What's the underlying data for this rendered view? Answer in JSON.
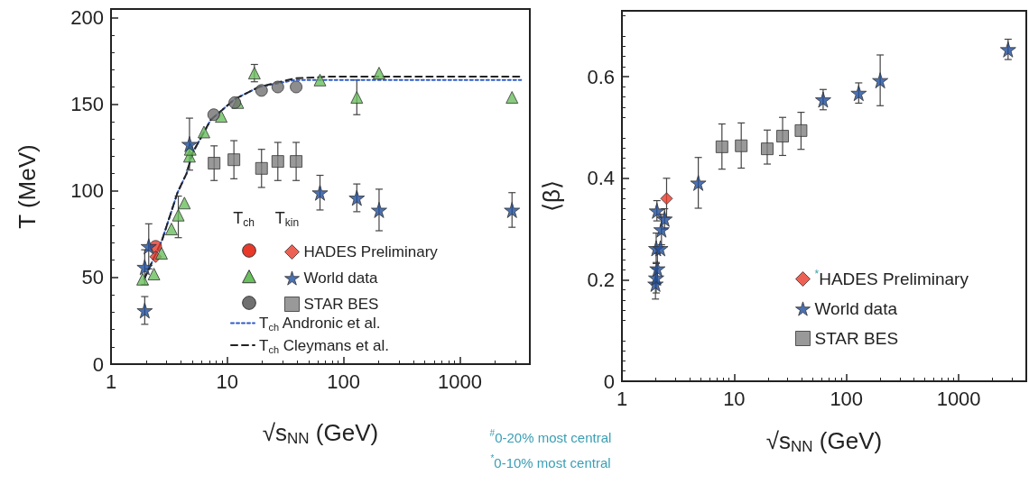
{
  "chart_data": [
    {
      "type": "scatter",
      "xlabel": "√s$_{NN}$ (GeV)",
      "ylabel": "T (MeV)",
      "log": "x",
      "xlim": [
        1,
        4000
      ],
      "xticks": [
        1,
        10,
        100,
        1000
      ],
      "ylim": [
        0,
        205
      ],
      "yticks": [
        0,
        50,
        100,
        150,
        200
      ],
      "legend": "bottom right",
      "grid": false,
      "annotations": [
        "T$_{ch}$",
        "T$_{kin}$"
      ],
      "series": [
        {
          "type": "scatter",
          "marker": "circle",
          "color": "#e8392b",
          "x": [
            2.42
          ],
          "values": [
            68
          ]
        },
        {
          "name": "HADES Preliminary",
          "type": "scatter",
          "marker": "diamond",
          "color": "#e8392b",
          "x": [
            2.42
          ],
          "values": [
            62
          ]
        },
        {
          "type": "scatter",
          "marker": "triangle",
          "color": "#6abf5e",
          "x": [
            1.87,
            2.34,
            2.72,
            3.31,
            3.79,
            4.28,
            4.73,
            4.8,
            6.3,
            8.87,
            12.3,
            17.1,
            62.7,
            130,
            202,
            2810
          ],
          "values": [
            49,
            52,
            64,
            78,
            86,
            93,
            120,
            124,
            134,
            143,
            151,
            168,
            164,
            154,
            168,
            154
          ],
          "errors": [
            null,
            null,
            null,
            null,
            [
              73,
              97
            ],
            null,
            null,
            null,
            null,
            null,
            null,
            [
              163,
              173
            ],
            null,
            [
              144,
              164
            ],
            null,
            null
          ]
        },
        {
          "name": "World data",
          "type": "scatter",
          "marker": "star",
          "color": "#1f4e9c",
          "x": [
            1.95,
            1.95,
            2.11,
            4.73,
            62.7,
            130,
            202,
            2810
          ],
          "values": [
            31,
            56,
            68,
            127,
            99,
            96,
            89,
            89
          ],
          "errors": [
            [
              23,
              39
            ],
            10,
            13,
            [
              112,
              142
            ],
            [
              89,
              109
            ],
            [
              88,
              104
            ],
            [
              77,
              101
            ],
            [
              79,
              99
            ]
          ]
        },
        {
          "type": "scatter",
          "marker": "circle",
          "color": "#707070",
          "x": [
            7.64,
            11.6,
            19.7,
            27.2,
            39.1
          ],
          "values": [
            144,
            151,
            158,
            160,
            160
          ]
        },
        {
          "name": "STAR BES",
          "type": "scatter",
          "marker": "square",
          "color": "#7f7f7f",
          "x": [
            7.7,
            11.4,
            19.7,
            27.2,
            39.1
          ],
          "values": [
            116,
            118,
            113,
            117,
            117
          ],
          "errors": [
            [
              106,
              126
            ],
            [
              107,
              129
            ],
            [
              102,
              124
            ],
            [
              106,
              128
            ],
            [
              106,
              128
            ]
          ]
        },
        {
          "name": "T$_{ch}$ Andronic et al.",
          "type": "line",
          "marker": "none",
          "line_style": "dotted",
          "color": "#2e5cc8",
          "x": [
            1.93,
            2.76,
            3.73,
            4.46,
            5.03,
            7.2,
            11.6,
            18.7,
            38.2,
            78.7,
            3365
          ],
          "values": [
            49,
            72,
            99,
            110,
            122,
            141,
            153,
            160,
            164,
            164,
            164
          ]
        },
        {
          "name": "T$_{ch}$ Cleymans et al.",
          "type": "line",
          "marker": "none",
          "line_style": "dashed",
          "color": "#222222",
          "x": [
            1.93,
            2.76,
            3.73,
            4.46,
            5.03,
            7.2,
            11.6,
            18.7,
            38.2,
            78.7,
            3365
          ],
          "values": [
            49,
            72,
            99,
            110,
            122,
            141,
            153,
            160,
            165,
            166,
            166
          ]
        }
      ]
    },
    {
      "type": "scatter",
      "xlabel": "√s$_{NN}$ (GeV)",
      "ylabel": "⟨β⟩",
      "log": "x",
      "xlim": [
        1,
        4000
      ],
      "xticks": [
        1,
        10,
        100,
        1000
      ],
      "ylim": [
        0,
        0.73
      ],
      "yticks": [
        0,
        0.2,
        0.4,
        0.6
      ],
      "legend": "bottom right",
      "grid": false,
      "annotations": [
        "$^{#}$0-20% most central",
        "$^{*}$0-10% most central"
      ],
      "series": [
        {
          "name": "$^{*}$HADES Preliminary",
          "type": "scatter",
          "marker": "diamond",
          "color": "#e8392b",
          "x": [
            2.5
          ],
          "values": [
            0.36
          ],
          "errors": [
            [
              0.323,
              0.4
            ]
          ]
        },
        {
          "name": "World data",
          "type": "scatter",
          "marker": "star",
          "color": "#1f4e9c",
          "x": [
            1.99,
            2.02,
            2.07,
            2.02,
            2.2,
            2.25,
            2.4,
            2.05,
            4.79,
            62,
            128.6,
            199.8,
            2754
          ],
          "values": [
            0.192,
            0.204,
            0.222,
            0.262,
            0.262,
            0.299,
            0.32,
            0.336,
            0.391,
            0.555,
            0.568,
            0.593,
            0.654
          ],
          "errors": [
            0.03,
            0.03,
            0.03,
            0.03,
            null,
            0.03,
            0.02,
            0.02,
            0.05,
            0.02,
            0.02,
            0.05,
            0.02
          ]
        },
        {
          "name": "STAR BES",
          "type": "scatter",
          "marker": "square",
          "color": "#7f7f7f",
          "x": [
            7.78,
            11.56,
            19.7,
            27.0,
            39.4
          ],
          "values": [
            0.462,
            0.464,
            0.458,
            0.483,
            0.494
          ],
          "errors": [
            [
              0.418,
              0.507
            ],
            [
              0.42,
              0.509
            ],
            [
              0.428,
              0.495
            ],
            [
              0.445,
              0.52
            ],
            [
              0.457,
              0.53
            ]
          ]
        }
      ]
    }
  ]
}
